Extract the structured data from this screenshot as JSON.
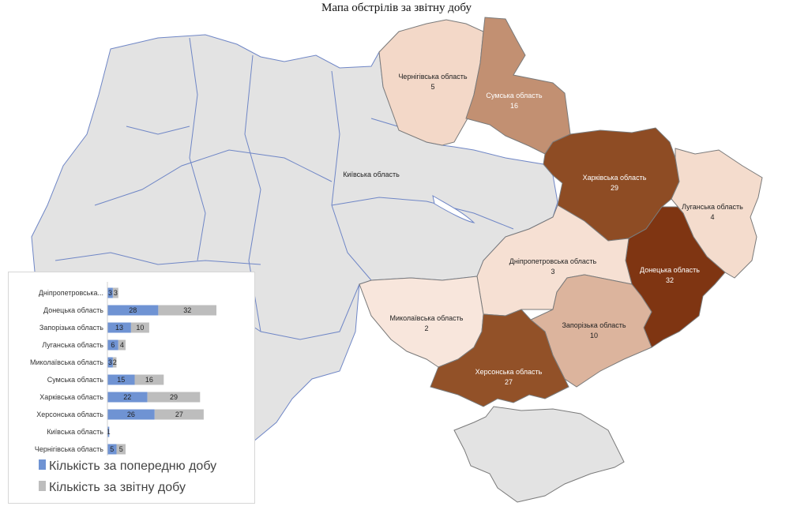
{
  "title": "Мапа обстрілів за звітну добу",
  "map": {
    "regions": [
      {
        "key": "kyivska",
        "name": "Київська область",
        "count": null,
        "fill": "#e3e3e3"
      },
      {
        "key": "chernihivska",
        "name": "Чернігівська область",
        "count": "5",
        "fill": "#f3d8c8"
      },
      {
        "key": "sumska",
        "name": "Сумська область",
        "count": "16",
        "fill": "#c29072"
      },
      {
        "key": "kharkivska",
        "name": "Харківська область",
        "count": "29",
        "fill": "#8e4c24"
      },
      {
        "key": "luhanska",
        "name": "Луганська область",
        "count": "4",
        "fill": "#f4dccd"
      },
      {
        "key": "donetska",
        "name": "Донецька область",
        "count": "32",
        "fill": "#7f3512"
      },
      {
        "key": "dnipropetrovska",
        "name": "Дніпропетровська область",
        "count": "3",
        "fill": "#f6e0d3"
      },
      {
        "key": "zaporizka",
        "name": "Запорізька область",
        "count": "10",
        "fill": "#dcb49d"
      },
      {
        "key": "mykolaivska",
        "name": "Миколаївська область",
        "count": "2",
        "fill": "#f8e6dc"
      },
      {
        "key": "khersonska",
        "name": "Херсонська область",
        "count": "27",
        "fill": "#925128"
      }
    ],
    "colors": {
      "neutral": "#e3e3e3",
      "border": "#6f86c6",
      "front_border": "#7a7a7a"
    }
  },
  "chart_data": {
    "type": "bar",
    "orientation": "horizontal",
    "stacked": true,
    "categories": [
      "Дніпропетровська...",
      "Донецька область",
      "Запорізька область",
      "Луганська область",
      "Миколаївська область",
      "Сумська область",
      "Харківська область",
      "Херсонська область",
      "Київська область",
      "Чернігівська область"
    ],
    "series": [
      {
        "name": "Кількість за попередню добу",
        "color": "#6f93d3",
        "values": [
          3,
          28,
          13,
          6,
          3,
          15,
          22,
          26,
          1,
          5
        ]
      },
      {
        "name": "Кількість за звітну добу",
        "color": "#bdbdbd",
        "values": [
          3,
          32,
          10,
          4,
          2,
          16,
          29,
          27,
          null,
          5
        ]
      }
    ],
    "legend_position": "bottom",
    "grid": false
  }
}
